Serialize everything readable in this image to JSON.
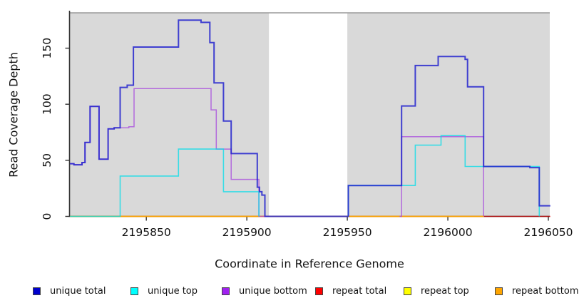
{
  "figure": {
    "xlabel": "Coordinate in Reference Genome",
    "ylabel": "Read Coverage Depth"
  },
  "chart_data": {
    "type": "line",
    "subtype": "step-coverage",
    "title": "",
    "xlabel": "Coordinate in Reference Genome",
    "ylabel": "Read Coverage Depth",
    "xlim": [
      2195811.8,
      2196050.7
    ],
    "ylim": [
      0,
      181.5
    ],
    "x_ticks": [
      2195850,
      2195900,
      2195950,
      2196000,
      2196050
    ],
    "y_ticks": [
      0,
      50,
      100,
      150
    ],
    "grid": false,
    "panel_background": "#d9d9d9",
    "gap_region": {
      "from": 2195911,
      "to": 2195950,
      "color": "#ffffff"
    },
    "background_bands": [
      {
        "from": 2195811.8,
        "to": 2195911,
        "color": "#d9d9d9"
      },
      {
        "from": 2195950,
        "to": 2196050.7,
        "color": "#d9d9d9"
      }
    ],
    "axis_color": "#333333",
    "top_border_color": "#9a9a9a",
    "series": [
      {
        "name": "repeat total",
        "color": "#E00000",
        "width": 1.6,
        "opacity": 0.7,
        "points": [
          [
            2195812,
            0
          ],
          [
            2196051,
            0
          ]
        ]
      },
      {
        "name": "repeat top",
        "color": "#F0F000",
        "width": 1.6,
        "opacity": 0.7,
        "points": [
          [
            2195812,
            0
          ],
          [
            2196018,
            0
          ]
        ]
      },
      {
        "name": "repeat bottom",
        "color": "#FF9E00",
        "width": 1.7,
        "opacity": 0.8,
        "points": [
          [
            2195837,
            0
          ],
          [
            2196018,
            0
          ]
        ]
      },
      {
        "name": "unique bottom",
        "color": "#A23CDE",
        "width": 1.5,
        "opacity": 0.7,
        "points": [
          [
            2195812,
            47
          ],
          [
            2195814,
            46
          ],
          [
            2195818,
            48
          ],
          [
            2195819.5,
            66
          ],
          [
            2195822,
            98
          ],
          [
            2195826.5,
            51
          ],
          [
            2195831,
            78
          ],
          [
            2195834,
            79
          ],
          [
            2195841.3,
            80
          ],
          [
            2195843.9,
            114
          ],
          [
            2195882.2,
            95
          ],
          [
            2195884.8,
            60
          ],
          [
            2195892.2,
            33
          ],
          [
            2195906,
            0
          ],
          [
            2195911,
            0
          ],
          null,
          [
            2195976,
            0
          ],
          [
            2195977,
            71
          ],
          [
            2196017.8,
            0
          ]
        ]
      },
      {
        "name": "unique top",
        "color": "#00DCE8",
        "width": 1.6,
        "opacity": 0.75,
        "points": [
          [
            2195812,
            0
          ],
          [
            2195837,
            36
          ],
          [
            2195866,
            60
          ],
          [
            2195888.4,
            22
          ],
          [
            2195906,
            0
          ],
          null,
          [
            2195950.5,
            0
          ],
          [
            2195950.5,
            27.5
          ],
          [
            2195983.8,
            63.5
          ],
          [
            2195996.6,
            72
          ],
          [
            2196008.6,
            44.5
          ],
          [
            2196045.5,
            44.5
          ],
          [
            2196045.5,
            0
          ]
        ]
      },
      {
        "name": "unique total",
        "color": "#2323CE",
        "width": 2,
        "opacity": 0.85,
        "points": [
          [
            2195812,
            47
          ],
          [
            2195814,
            46
          ],
          [
            2195818,
            48
          ],
          [
            2195819.5,
            66
          ],
          [
            2195822,
            98
          ],
          [
            2195826.5,
            51
          ],
          [
            2195831,
            78
          ],
          [
            2195834,
            79
          ],
          [
            2195837,
            115
          ],
          [
            2195840.5,
            117
          ],
          [
            2195843.6,
            151
          ],
          [
            2195866,
            175
          ],
          [
            2195877.2,
            173
          ],
          [
            2195881.6,
            155
          ],
          [
            2195883.7,
            119
          ],
          [
            2195888.4,
            85
          ],
          [
            2195892.2,
            56
          ],
          [
            2195905.2,
            26
          ],
          [
            2195906.3,
            22
          ],
          [
            2195907.5,
            19
          ],
          [
            2195909,
            0
          ],
          [
            2195950.5,
            27.5
          ],
          [
            2195977,
            98.5
          ],
          [
            2195983.8,
            134.5
          ],
          [
            2195995.2,
            142.5
          ],
          [
            2196008.6,
            140
          ],
          [
            2196009.8,
            115.5
          ],
          [
            2196017.8,
            44.5
          ],
          [
            2196040.8,
            43.5
          ],
          [
            2196045.5,
            9.5
          ],
          [
            2196051,
            9.5
          ]
        ]
      }
    ],
    "legend": {
      "position": "bottom",
      "items": [
        {
          "label": "unique total",
          "color": "#0000CD"
        },
        {
          "label": "unique top",
          "color": "#00FFFF"
        },
        {
          "label": "unique bottom",
          "color": "#A020F0"
        },
        {
          "label": "repeat total",
          "color": "#FF0000"
        },
        {
          "label": "repeat top",
          "color": "#FFFF00"
        },
        {
          "label": "repeat bottom",
          "color": "#FFA500"
        }
      ]
    }
  }
}
